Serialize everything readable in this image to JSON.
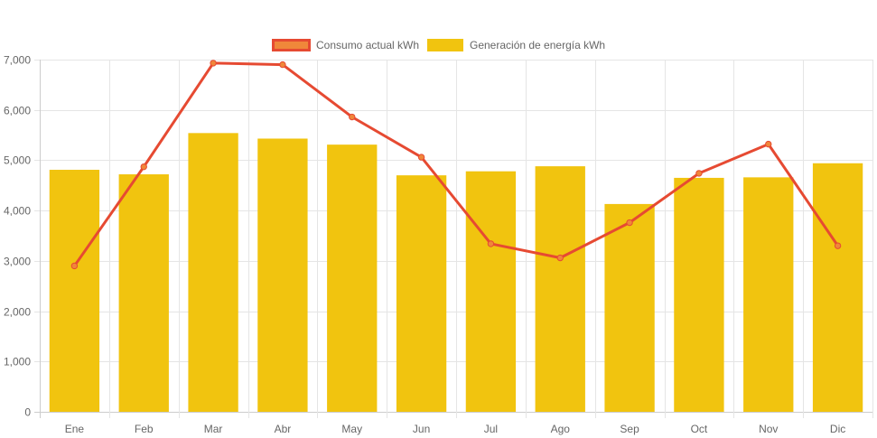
{
  "chart_data": {
    "type": "bar",
    "categories": [
      "Ene",
      "Feb",
      "Mar",
      "Abr",
      "May",
      "Jun",
      "Jul",
      "Ago",
      "Sep",
      "Oct",
      "Nov",
      "Dic"
    ],
    "series": [
      {
        "name": "Consumo actual kWh",
        "type": "line",
        "color": "#e64a32",
        "marker_color": "#f0873a",
        "values": [
          2900,
          4870,
          6930,
          6900,
          5860,
          5060,
          3340,
          3060,
          3760,
          4740,
          5320,
          3300
        ]
      },
      {
        "name": "Generación de energía kWh",
        "type": "bar",
        "color": "#f1c40f",
        "values": [
          4810,
          4720,
          5540,
          5430,
          5310,
          4700,
          4780,
          4880,
          4130,
          4650,
          4660,
          4940
        ]
      }
    ],
    "ylim": [
      0,
      7000
    ],
    "yticks": [
      0,
      1000,
      2000,
      3000,
      4000,
      5000,
      6000,
      7000
    ],
    "ytick_labels": [
      "0",
      "1,000",
      "2,000",
      "3,000",
      "4,000",
      "5,000",
      "6,000",
      "7,000"
    ],
    "legend_position": "top-center",
    "grid": true
  }
}
